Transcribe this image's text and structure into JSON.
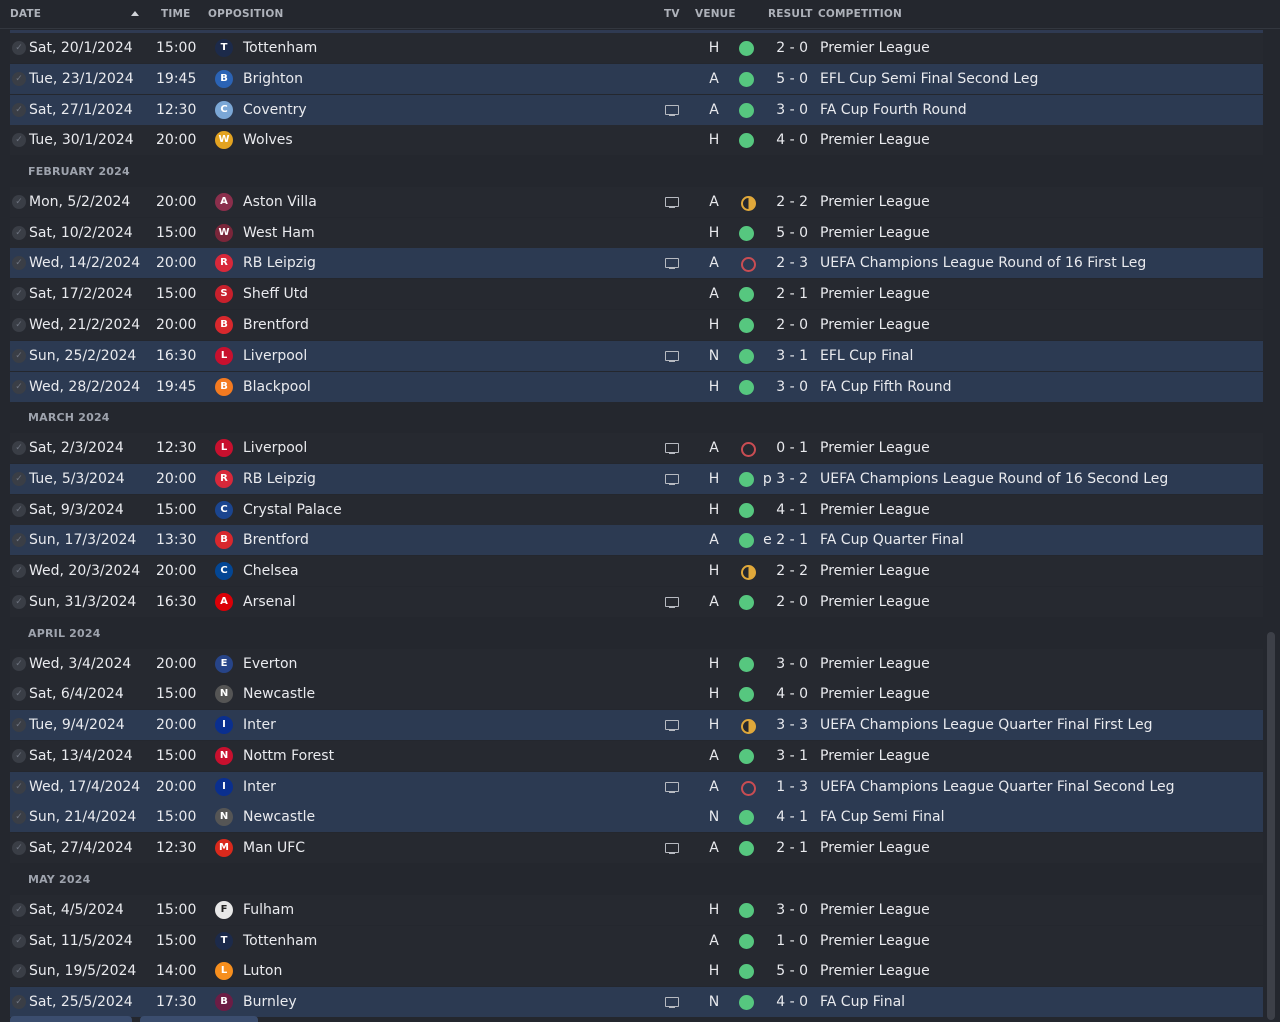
{
  "header": {
    "date": "DATE",
    "time": "TIME",
    "opposition": "OPPOSITION",
    "tv": "TV",
    "venue": "VENUE",
    "result": "RESULT",
    "competition": "COMPETITION"
  },
  "colors": {
    "win": "#56c77f",
    "loss": "#c94d53",
    "draw": "#e0a83a",
    "highlight_row": "#2c3a52"
  },
  "items": [
    {
      "kind": "match",
      "date": "Sat, 20/1/2024",
      "time": "15:00",
      "opp": "Tottenham",
      "crest": "T",
      "crest_color": "#1c2a4a",
      "tv": false,
      "venue": "H",
      "res": "W",
      "score": "2 - 0",
      "comp": "Premier League",
      "hl": false
    },
    {
      "kind": "match",
      "date": "Tue, 23/1/2024",
      "time": "19:45",
      "opp": "Brighton",
      "crest": "B",
      "crest_color": "#2b63b5",
      "tv": false,
      "venue": "A",
      "res": "W",
      "score": "5 - 0",
      "comp": "EFL Cup Semi Final Second Leg",
      "hl": true
    },
    {
      "kind": "match",
      "date": "Sat, 27/1/2024",
      "time": "12:30",
      "opp": "Coventry",
      "crest": "C",
      "crest_color": "#7ba7d6",
      "tv": true,
      "venue": "A",
      "res": "W",
      "score": "3 - 0",
      "comp": "FA Cup Fourth Round",
      "hl": true
    },
    {
      "kind": "match",
      "date": "Tue, 30/1/2024",
      "time": "20:00",
      "opp": "Wolves",
      "crest": "W",
      "crest_color": "#e3a321",
      "tv": false,
      "venue": "H",
      "res": "W",
      "score": "4 - 0",
      "comp": "Premier League",
      "hl": false
    },
    {
      "kind": "section",
      "label": "FEBRUARY 2024"
    },
    {
      "kind": "match",
      "date": "Mon, 5/2/2024",
      "time": "20:00",
      "opp": "Aston Villa",
      "crest": "A",
      "crest_color": "#8b2f4c",
      "tv": true,
      "venue": "A",
      "res": "D",
      "score": "2 - 2",
      "comp": "Premier League",
      "hl": false
    },
    {
      "kind": "match",
      "date": "Sat, 10/2/2024",
      "time": "15:00",
      "opp": "West Ham",
      "crest": "W",
      "crest_color": "#7a263a",
      "tv": false,
      "venue": "H",
      "res": "W",
      "score": "5 - 0",
      "comp": "Premier League",
      "hl": false
    },
    {
      "kind": "match",
      "date": "Wed, 14/2/2024",
      "time": "20:00",
      "opp": "RB Leipzig",
      "crest": "R",
      "crest_color": "#d8283a",
      "tv": true,
      "venue": "A",
      "res": "L",
      "score": "2 - 3",
      "comp": "UEFA Champions League Round of 16 First Leg",
      "hl": true
    },
    {
      "kind": "match",
      "date": "Sat, 17/2/2024",
      "time": "15:00",
      "opp": "Sheff Utd",
      "crest": "S",
      "crest_color": "#c8202c",
      "tv": false,
      "venue": "A",
      "res": "W",
      "score": "2 - 1",
      "comp": "Premier League",
      "hl": false
    },
    {
      "kind": "match",
      "date": "Wed, 21/2/2024",
      "time": "20:00",
      "opp": "Brentford",
      "crest": "B",
      "crest_color": "#d8282d",
      "tv": false,
      "venue": "H",
      "res": "W",
      "score": "2 - 0",
      "comp": "Premier League",
      "hl": false
    },
    {
      "kind": "match",
      "date": "Sun, 25/2/2024",
      "time": "16:30",
      "opp": "Liverpool",
      "crest": "L",
      "crest_color": "#c8102e",
      "tv": true,
      "venue": "N",
      "res": "W",
      "score": "3 - 1",
      "comp": "EFL Cup Final",
      "hl": true
    },
    {
      "kind": "match",
      "date": "Wed, 28/2/2024",
      "time": "19:45",
      "opp": "Blackpool",
      "crest": "B",
      "crest_color": "#f47a20",
      "tv": false,
      "venue": "H",
      "res": "W",
      "score": "3 - 0",
      "comp": "FA Cup Fifth Round",
      "hl": true
    },
    {
      "kind": "section",
      "label": "MARCH 2024"
    },
    {
      "kind": "match",
      "date": "Sat, 2/3/2024",
      "time": "12:30",
      "opp": "Liverpool",
      "crest": "L",
      "crest_color": "#c8102e",
      "tv": true,
      "venue": "A",
      "res": "L",
      "score": "0 - 1",
      "comp": "Premier League",
      "hl": false
    },
    {
      "kind": "match",
      "date": "Tue, 5/3/2024",
      "time": "20:00",
      "opp": "RB Leipzig",
      "crest": "R",
      "crest_color": "#d8283a",
      "tv": true,
      "venue": "H",
      "res": "W",
      "score": "p 3 - 2",
      "comp": "UEFA Champions League Round of 16 Second Leg",
      "hl": true
    },
    {
      "kind": "match",
      "date": "Sat, 9/3/2024",
      "time": "15:00",
      "opp": "Crystal Palace",
      "crest": "C",
      "crest_color": "#1b458f",
      "tv": false,
      "venue": "H",
      "res": "W",
      "score": "4 - 1",
      "comp": "Premier League",
      "hl": false
    },
    {
      "kind": "match",
      "date": "Sun, 17/3/2024",
      "time": "13:30",
      "opp": "Brentford",
      "crest": "B",
      "crest_color": "#d8282d",
      "tv": false,
      "venue": "A",
      "res": "W",
      "score": "e 2 - 1",
      "comp": "FA Cup Quarter Final",
      "hl": true
    },
    {
      "kind": "match",
      "date": "Wed, 20/3/2024",
      "time": "20:00",
      "opp": "Chelsea",
      "crest": "C",
      "crest_color": "#034694",
      "tv": false,
      "venue": "H",
      "res": "D",
      "score": "2 - 2",
      "comp": "Premier League",
      "hl": false
    },
    {
      "kind": "match",
      "date": "Sun, 31/3/2024",
      "time": "16:30",
      "opp": "Arsenal",
      "crest": "A",
      "crest_color": "#db0007",
      "tv": true,
      "venue": "A",
      "res": "W",
      "score": "2 - 0",
      "comp": "Premier League",
      "hl": false
    },
    {
      "kind": "section",
      "label": "APRIL 2024"
    },
    {
      "kind": "match",
      "date": "Wed, 3/4/2024",
      "time": "20:00",
      "opp": "Everton",
      "crest": "E",
      "crest_color": "#274488",
      "tv": false,
      "venue": "H",
      "res": "W",
      "score": "3 - 0",
      "comp": "Premier League",
      "hl": false
    },
    {
      "kind": "match",
      "date": "Sat, 6/4/2024",
      "time": "15:00",
      "opp": "Newcastle",
      "crest": "N",
      "crest_color": "#555555",
      "tv": false,
      "venue": "H",
      "res": "W",
      "score": "4 - 0",
      "comp": "Premier League",
      "hl": false
    },
    {
      "kind": "match",
      "date": "Tue, 9/4/2024",
      "time": "20:00",
      "opp": "Inter",
      "crest": "I",
      "crest_color": "#0a2f8f",
      "tv": true,
      "venue": "H",
      "res": "D",
      "score": "3 - 3",
      "comp": "UEFA Champions League Quarter Final First Leg",
      "hl": true
    },
    {
      "kind": "match",
      "date": "Sat, 13/4/2024",
      "time": "15:00",
      "opp": "Nottm Forest",
      "crest": "N",
      "crest_color": "#c8102e",
      "tv": false,
      "venue": "A",
      "res": "W",
      "score": "3 - 1",
      "comp": "Premier League",
      "hl": false
    },
    {
      "kind": "match",
      "date": "Wed, 17/4/2024",
      "time": "20:00",
      "opp": "Inter",
      "crest": "I",
      "crest_color": "#0a2f8f",
      "tv": true,
      "venue": "A",
      "res": "L",
      "score": "1 - 3",
      "comp": "UEFA Champions League Quarter Final Second Leg",
      "hl": true
    },
    {
      "kind": "match",
      "date": "Sun, 21/4/2024",
      "time": "15:00",
      "opp": "Newcastle",
      "crest": "N",
      "crest_color": "#555555",
      "tv": false,
      "venue": "N",
      "res": "W",
      "score": "4 - 1",
      "comp": "FA Cup Semi Final",
      "hl": true
    },
    {
      "kind": "match",
      "date": "Sat, 27/4/2024",
      "time": "12:30",
      "opp": "Man UFC",
      "crest": "M",
      "crest_color": "#da291c",
      "tv": true,
      "venue": "A",
      "res": "W",
      "score": "2 - 1",
      "comp": "Premier League",
      "hl": false
    },
    {
      "kind": "section",
      "label": "MAY 2024"
    },
    {
      "kind": "match",
      "date": "Sat, 4/5/2024",
      "time": "15:00",
      "opp": "Fulham",
      "crest": "F",
      "crest_color": "#e8e8e8",
      "tv": false,
      "venue": "H",
      "res": "W",
      "score": "3 - 0",
      "comp": "Premier League",
      "hl": false
    },
    {
      "kind": "match",
      "date": "Sat, 11/5/2024",
      "time": "15:00",
      "opp": "Tottenham",
      "crest": "T",
      "crest_color": "#1c2a4a",
      "tv": false,
      "venue": "A",
      "res": "W",
      "score": "1 - 0",
      "comp": "Premier League",
      "hl": false
    },
    {
      "kind": "match",
      "date": "Sun, 19/5/2024",
      "time": "14:00",
      "opp": "Luton",
      "crest": "L",
      "crest_color": "#f78f1e",
      "tv": false,
      "venue": "H",
      "res": "W",
      "score": "5 - 0",
      "comp": "Premier League",
      "hl": false
    },
    {
      "kind": "match",
      "date": "Sat, 25/5/2024",
      "time": "17:30",
      "opp": "Burnley",
      "crest": "B",
      "crest_color": "#6c1d45",
      "tv": true,
      "venue": "N",
      "res": "W",
      "score": "4 - 0",
      "comp": "FA Cup Final",
      "hl": true
    }
  ]
}
